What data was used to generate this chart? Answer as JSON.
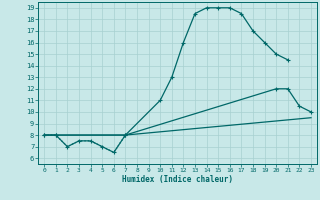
{
  "xlabel": "Humidex (Indice chaleur)",
  "bg_color": "#c8e8e8",
  "grid_color": "#a8d0d0",
  "line_color": "#006868",
  "xlim": [
    -0.5,
    23.5
  ],
  "ylim": [
    5.5,
    19.5
  ],
  "xticks": [
    0,
    1,
    2,
    3,
    4,
    5,
    6,
    7,
    8,
    9,
    10,
    11,
    12,
    13,
    14,
    15,
    16,
    17,
    18,
    19,
    20,
    21,
    22,
    23
  ],
  "yticks": [
    6,
    7,
    8,
    9,
    10,
    11,
    12,
    13,
    14,
    15,
    16,
    17,
    18,
    19
  ],
  "curve1_x": [
    0,
    1,
    2,
    3,
    4,
    5,
    6,
    7,
    10,
    11,
    12,
    13,
    14,
    15,
    16,
    17,
    18,
    19,
    20,
    21
  ],
  "curve1_y": [
    8,
    8,
    7,
    7.5,
    7.5,
    7,
    6.5,
    8,
    11,
    13,
    16,
    18.5,
    19,
    19,
    19,
    18.5,
    17,
    16,
    15,
    14.5
  ],
  "curve2_x": [
    0,
    1,
    7,
    20,
    21,
    22,
    23
  ],
  "curve2_y": [
    8,
    8,
    8,
    12,
    12,
    10.5,
    10
  ],
  "curve3_x": [
    0,
    1,
    7,
    23
  ],
  "curve3_y": [
    8,
    8,
    8,
    9.5
  ],
  "curve4_x": [
    0,
    1,
    2,
    3,
    4,
    5,
    6,
    7
  ],
  "curve4_y": [
    8,
    8,
    7,
    7.5,
    7.5,
    7,
    6.5,
    8
  ]
}
